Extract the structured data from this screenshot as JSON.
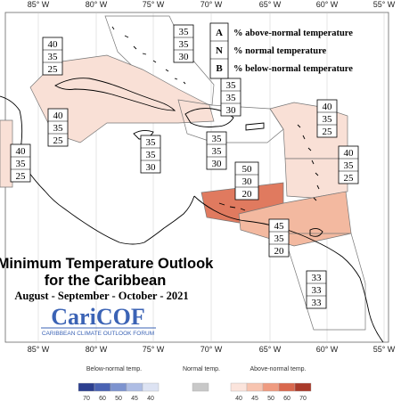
{
  "map": {
    "title_line1": "Minimum Temperature Outlook",
    "title_line2": "for the Caribbean",
    "period": "August - September - October - 2021",
    "logo": {
      "wordmark": "CariCOF",
      "tagline": "CARIBBEAN CLIMATE OUTLOOK FORUM"
    },
    "lon_labels_top": [
      "85° W",
      "80° W",
      "75° W",
      "70° W",
      "65° W",
      "60° W",
      "55° W"
    ],
    "lon_labels_bottom": [
      "85° W",
      "80° W",
      "75° W",
      "70° W",
      "65° W",
      "60° W",
      "55° W"
    ],
    "key": [
      {
        "letter": "A",
        "text": "% above-normal temperature"
      },
      {
        "letter": "N",
        "text": "% normal temperature"
      },
      {
        "letter": "B",
        "text": "% below-normal temperature"
      }
    ],
    "regions": [
      {
        "id": "bahamas",
        "above": "35",
        "normal": "35",
        "below": "30",
        "color": "none"
      },
      {
        "id": "cuba-west",
        "above": "40",
        "normal": "35",
        "below": "25",
        "color": "#f9e0d6"
      },
      {
        "id": "cayman-jamaica",
        "above": "40",
        "normal": "35",
        "below": "25",
        "color": "#f9e0d6"
      },
      {
        "id": "belize",
        "above": "40",
        "normal": "35",
        "below": "25",
        "color": "#f9e0d6"
      },
      {
        "id": "jamaica-south",
        "above": "35",
        "normal": "35",
        "below": "30",
        "color": "none"
      },
      {
        "id": "hispaniola-north",
        "above": "35",
        "normal": "35",
        "below": "30",
        "color": "none"
      },
      {
        "id": "hispaniola-south",
        "above": "35",
        "normal": "35",
        "below": "30",
        "color": "none"
      },
      {
        "id": "leewards",
        "above": "40",
        "normal": "35",
        "below": "25",
        "color": "#f9e0d6"
      },
      {
        "id": "windwards",
        "above": "40",
        "normal": "35",
        "below": "25",
        "color": "#f9e0d6"
      },
      {
        "id": "abc-islands",
        "above": "50",
        "normal": "30",
        "below": "20",
        "color": "#e07a5f"
      },
      {
        "id": "trinidad",
        "above": "45",
        "normal": "35",
        "below": "20",
        "color": "#f3b9a0"
      },
      {
        "id": "guianas",
        "above": "33",
        "normal": "33",
        "below": "33",
        "color": "none"
      }
    ],
    "scale": {
      "below_label": "Below-normal temp.",
      "normal_label": "Normal temp.",
      "above_label": "Above-normal temp.",
      "below_ticks": [
        "70",
        "60",
        "50",
        "45",
        "40"
      ],
      "above_ticks": [
        "40",
        "45",
        "50",
        "60",
        "70"
      ],
      "below_colors": [
        "#2c3f8f",
        "#4a63b3",
        "#7d93cf",
        "#aebde4",
        "#dde3f3"
      ],
      "normal_color": "#c8c8c8",
      "above_colors": [
        "#fbe4dc",
        "#f7c4b0",
        "#ef9b80",
        "#d9684e",
        "#a93a2a"
      ]
    }
  }
}
